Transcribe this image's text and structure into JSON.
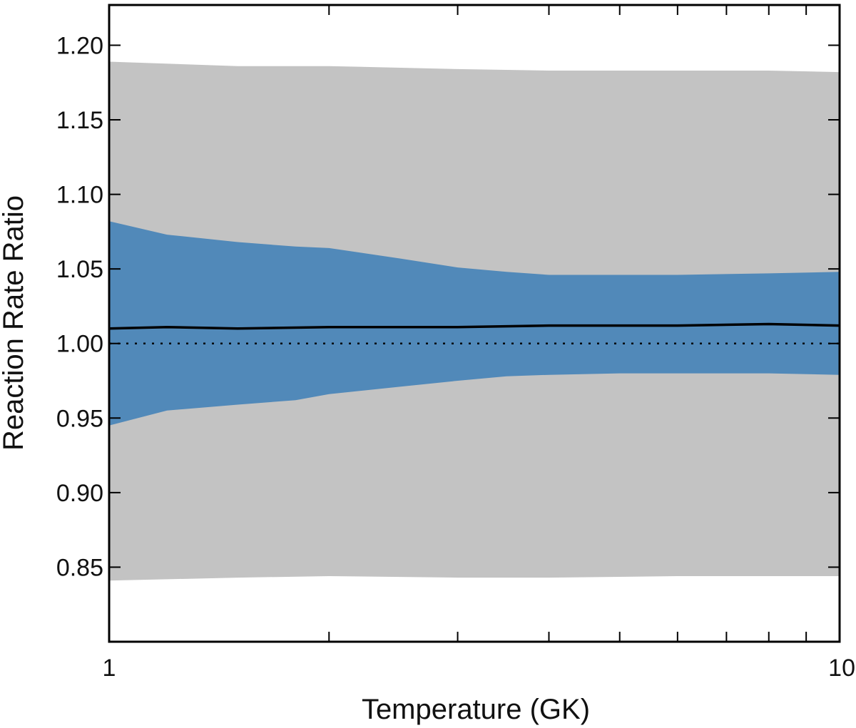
{
  "chart_data": {
    "type": "area",
    "title": "",
    "xlabel": "Temperature (GK)",
    "ylabel": "Reaction Rate Ratio",
    "xscale": "log",
    "xlim": [
      1,
      10
    ],
    "ylim": [
      0.8,
      1.227
    ],
    "grid": false,
    "legend": "none",
    "x_tick_labels": [
      {
        "value": 1,
        "label": "1"
      },
      {
        "value": 10,
        "label": "10"
      }
    ],
    "x_minor_ticks": [
      2,
      3,
      4,
      5,
      6,
      7,
      8,
      9
    ],
    "y_ticks": [
      {
        "value": 0.85,
        "label": "0.85"
      },
      {
        "value": 0.9,
        "label": "0.90"
      },
      {
        "value": 0.95,
        "label": "0.95"
      },
      {
        "value": 1.0,
        "label": "1.00"
      },
      {
        "value": 1.05,
        "label": "1.05"
      },
      {
        "value": 1.1,
        "label": "1.10"
      },
      {
        "value": 1.15,
        "label": "1.15"
      },
      {
        "value": 1.2,
        "label": "1.20"
      }
    ],
    "bands": [
      {
        "role": "outer",
        "color": "#c3c3c3",
        "x": [
          1,
          1.5,
          2,
          3,
          4,
          6,
          8,
          10
        ],
        "upper": [
          1.189,
          1.186,
          1.186,
          1.184,
          1.183,
          1.183,
          1.183,
          1.182
        ],
        "lower": [
          0.841,
          0.843,
          0.844,
          0.843,
          0.843,
          0.844,
          0.844,
          0.844
        ]
      },
      {
        "role": "inner",
        "color": "#5189b9",
        "x": [
          1,
          1.2,
          1.5,
          1.8,
          2,
          2.5,
          3,
          3.5,
          4,
          5,
          6,
          8,
          10
        ],
        "upper": [
          1.082,
          1.073,
          1.068,
          1.065,
          1.064,
          1.057,
          1.051,
          1.048,
          1.046,
          1.046,
          1.046,
          1.047,
          1.048
        ],
        "lower": [
          0.945,
          0.955,
          0.959,
          0.962,
          0.966,
          0.971,
          0.975,
          0.978,
          0.979,
          0.98,
          0.98,
          0.98,
          0.979
        ]
      }
    ],
    "series": [
      {
        "style": "solid",
        "color": "#000000",
        "x": [
          1,
          1.2,
          1.5,
          2,
          3,
          4,
          6,
          8,
          10
        ],
        "values": [
          1.01,
          1.011,
          1.01,
          1.011,
          1.011,
          1.012,
          1.012,
          1.013,
          1.012
        ]
      },
      {
        "style": "dotted",
        "color": "#000000",
        "x": [
          1,
          10
        ],
        "values": [
          1.0,
          1.0
        ]
      }
    ]
  }
}
